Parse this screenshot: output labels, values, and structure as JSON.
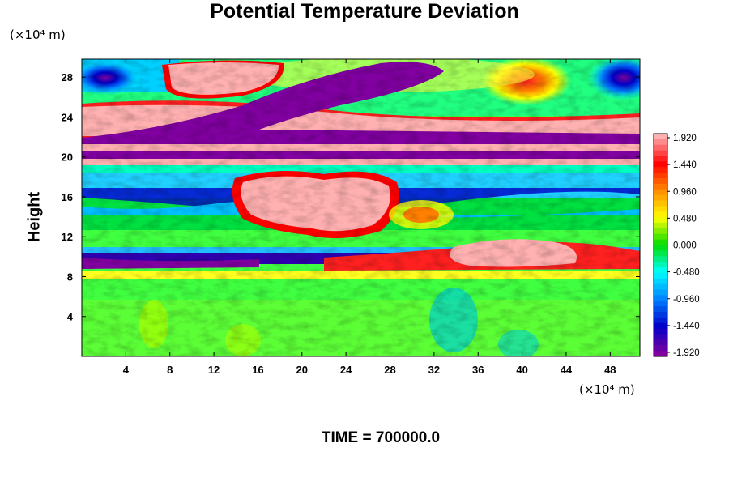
{
  "chart_data": {
    "type": "heatmap",
    "title": "Potential Temperature Deviation",
    "ylabel": "Height",
    "xlabel": "",
    "x_unit": "(×10⁴ m)",
    "y_unit": "(×10⁴ m)",
    "x_ticks": [
      4,
      8,
      12,
      16,
      20,
      24,
      28,
      32,
      36,
      40,
      44,
      48
    ],
    "y_ticks": [
      4,
      8,
      12,
      16,
      20,
      24,
      28
    ],
    "xlim": [
      0,
      50.7
    ],
    "ylim": [
      0,
      29.8
    ],
    "colorbar": {
      "labels": [
        "1.920",
        "1.440",
        "0.960",
        "0.480",
        "0.000",
        "-0.480",
        "-0.960",
        "-1.440",
        "-1.920"
      ],
      "range": [
        -1.92,
        1.92
      ],
      "colors": [
        "#ffb0b0",
        "#ff0000",
        "#ff8c00",
        "#ffff00",
        "#00dd00",
        "#00ffff",
        "#0080ff",
        "#0000c8",
        "#8000a0"
      ]
    },
    "footer": "TIME = 700000.0"
  }
}
